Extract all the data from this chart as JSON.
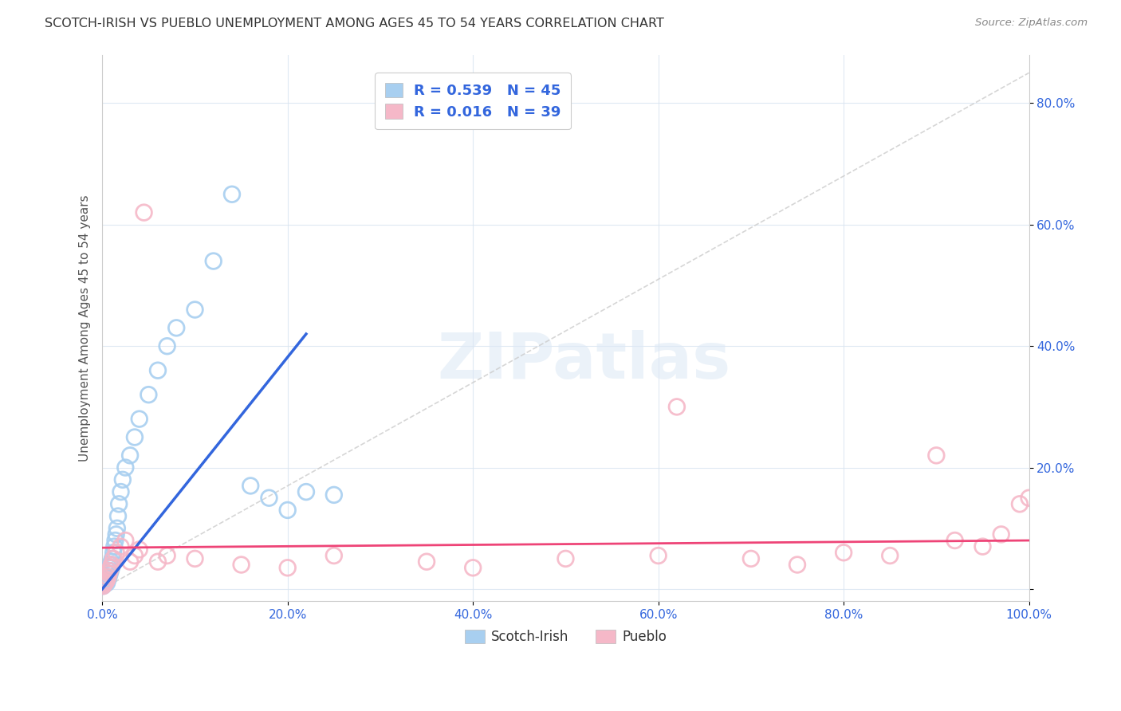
{
  "title": "SCOTCH-IRISH VS PUEBLO UNEMPLOYMENT AMONG AGES 45 TO 54 YEARS CORRELATION CHART",
  "source": "Source: ZipAtlas.com",
  "ylabel": "Unemployment Among Ages 45 to 54 years",
  "xlim": [
    0.0,
    1.0
  ],
  "ylim": [
    -0.02,
    0.88
  ],
  "xticks": [
    0.0,
    0.2,
    0.4,
    0.6,
    0.8,
    1.0
  ],
  "xtick_labels": [
    "0.0%",
    "20.0%",
    "40.0%",
    "60.0%",
    "80.0%",
    "100.0%"
  ],
  "yticks": [
    0.0,
    0.2,
    0.4,
    0.6,
    0.8
  ],
  "ytick_labels": [
    "",
    "20.0%",
    "40.0%",
    "60.0%",
    "80.0%"
  ],
  "scotch_irish_color": "#a8cff0",
  "pueblo_color": "#f5b8c8",
  "scotch_irish_line_color": "#3366dd",
  "pueblo_line_color": "#ee4477",
  "diagonal_color": "#cccccc",
  "watermark_text": "ZIPatlas",
  "scotch_irish_x": [
    0.001,
    0.002,
    0.003,
    0.003,
    0.004,
    0.004,
    0.005,
    0.005,
    0.006,
    0.006,
    0.007,
    0.007,
    0.008,
    0.008,
    0.009,
    0.009,
    0.01,
    0.01,
    0.011,
    0.011,
    0.012,
    0.013,
    0.014,
    0.015,
    0.016,
    0.017,
    0.018,
    0.02,
    0.022,
    0.025,
    0.03,
    0.035,
    0.04,
    0.05,
    0.06,
    0.07,
    0.08,
    0.1,
    0.12,
    0.14,
    0.16,
    0.18,
    0.2,
    0.22,
    0.25
  ],
  "scotch_irish_y": [
    0.005,
    0.01,
    0.008,
    0.015,
    0.012,
    0.018,
    0.01,
    0.02,
    0.015,
    0.025,
    0.02,
    0.03,
    0.025,
    0.035,
    0.03,
    0.04,
    0.035,
    0.045,
    0.04,
    0.05,
    0.06,
    0.07,
    0.08,
    0.09,
    0.1,
    0.12,
    0.14,
    0.16,
    0.18,
    0.2,
    0.22,
    0.25,
    0.28,
    0.32,
    0.36,
    0.4,
    0.43,
    0.46,
    0.54,
    0.65,
    0.17,
    0.15,
    0.13,
    0.16,
    0.155
  ],
  "pueblo_x": [
    0.001,
    0.002,
    0.003,
    0.004,
    0.005,
    0.006,
    0.007,
    0.008,
    0.009,
    0.01,
    0.012,
    0.015,
    0.02,
    0.025,
    0.03,
    0.035,
    0.04,
    0.045,
    0.06,
    0.07,
    0.1,
    0.15,
    0.2,
    0.25,
    0.35,
    0.4,
    0.5,
    0.6,
    0.62,
    0.7,
    0.75,
    0.8,
    0.85,
    0.9,
    0.92,
    0.95,
    0.97,
    0.99,
    1.0
  ],
  "pueblo_y": [
    0.005,
    0.008,
    0.01,
    0.012,
    0.015,
    0.02,
    0.025,
    0.03,
    0.035,
    0.04,
    0.05,
    0.06,
    0.07,
    0.08,
    0.045,
    0.055,
    0.065,
    0.62,
    0.045,
    0.055,
    0.05,
    0.04,
    0.035,
    0.055,
    0.045,
    0.035,
    0.05,
    0.055,
    0.3,
    0.05,
    0.04,
    0.06,
    0.055,
    0.22,
    0.08,
    0.07,
    0.09,
    0.14,
    0.15
  ],
  "si_line_x": [
    0.0,
    0.22
  ],
  "si_line_y": [
    0.0,
    0.42
  ],
  "pu_line_x": [
    0.0,
    1.0
  ],
  "pu_line_y": [
    0.068,
    0.08
  ]
}
